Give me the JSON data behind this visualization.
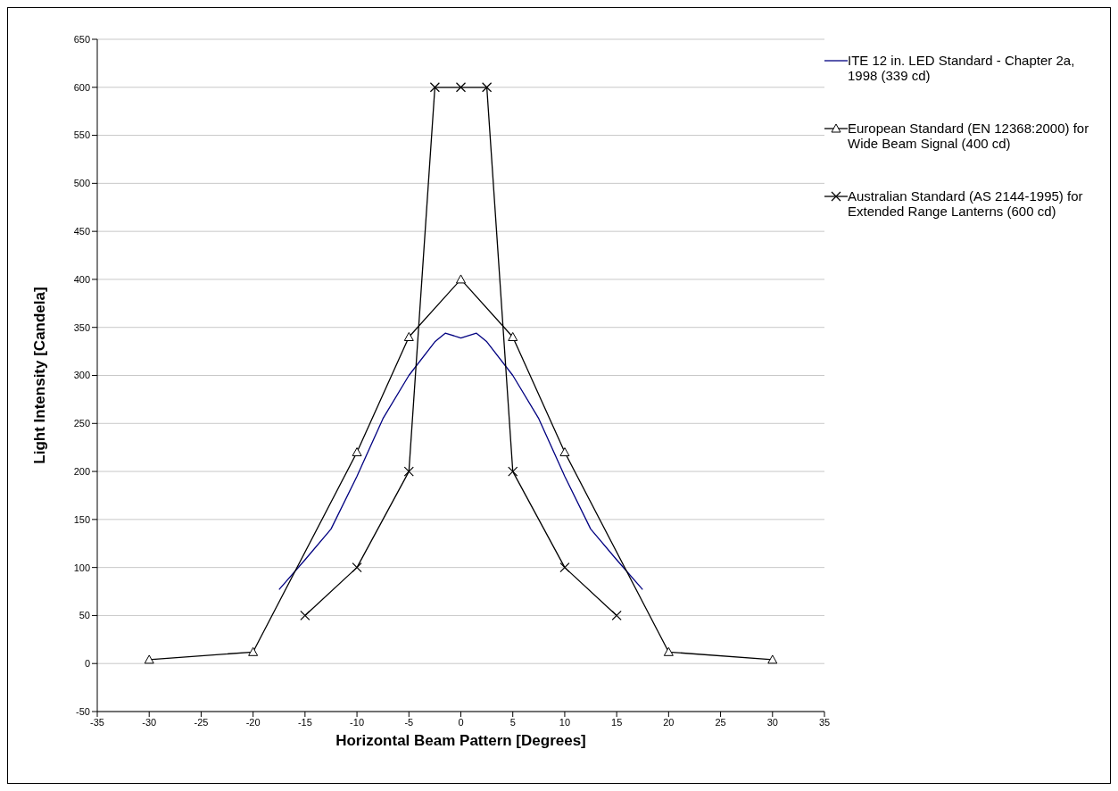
{
  "chart_data": {
    "type": "line",
    "xlabel": "Horizontal Beam Pattern [Degrees]",
    "ylabel": "Light Intensity [Candela]",
    "xlim": [
      -35,
      35
    ],
    "xticks": [
      -35,
      -30,
      -25,
      -20,
      -15,
      -10,
      -5,
      0,
      5,
      10,
      15,
      20,
      25,
      30,
      35
    ],
    "ylim": [
      -50,
      650
    ],
    "yticks": [
      -50,
      0,
      50,
      100,
      150,
      200,
      250,
      300,
      350,
      400,
      450,
      500,
      550,
      600,
      650
    ],
    "grid": "y",
    "legend": "top right",
    "series": [
      {
        "name": "ITE 12 in. LED Standard - Chapter 2a, 1998 (339 cd)",
        "color": "#000080",
        "marker": "none",
        "x": [
          -17.5,
          -15,
          -12.5,
          -10,
          -7.5,
          -5,
          -2.5,
          -1.5,
          0,
          1.5,
          2.5,
          5,
          7.5,
          10,
          12.5,
          15,
          17.5
        ],
        "values": [
          77,
          108,
          140,
          195,
          255,
          300,
          335,
          344,
          339,
          344,
          335,
          300,
          255,
          195,
          140,
          108,
          77
        ]
      },
      {
        "name": "European Standard (EN 12368:2000) for Wide Beam Signal (400 cd)",
        "color": "#000000",
        "marker": "triangle",
        "x": [
          -30,
          -20,
          -10,
          -5,
          0,
          5,
          10,
          20,
          30
        ],
        "values": [
          4,
          12,
          220,
          340,
          400,
          340,
          220,
          12,
          4
        ]
      },
      {
        "name": "Australian Standard  (AS 2144-1995) for Extended Range Lanterns (600 cd)",
        "color": "#000000",
        "marker": "cross",
        "x": [
          -15,
          -10,
          -5,
          -2.5,
          0,
          2.5,
          5,
          10,
          15
        ],
        "values": [
          50,
          100,
          200,
          600,
          600,
          600,
          200,
          100,
          50
        ]
      }
    ]
  }
}
